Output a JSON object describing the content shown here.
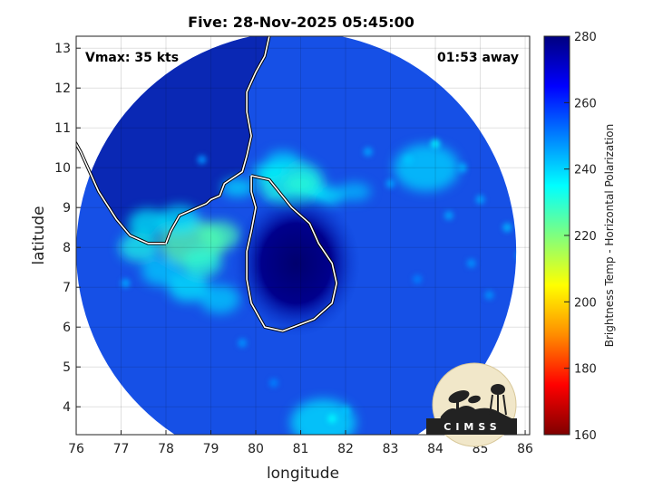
{
  "title": "Five: 28-Nov-2025 05:45:00",
  "inset": {
    "vmax": "Vmax: 35 kts",
    "time_away": "01:53 away"
  },
  "axes": {
    "xlabel": "longitude",
    "ylabel": "latitude",
    "xlim": [
      76,
      86.1
    ],
    "ylim": [
      3.3,
      13.3
    ],
    "xticks": [
      76,
      77,
      78,
      79,
      80,
      81,
      82,
      83,
      84,
      85,
      86
    ],
    "yticks": [
      4,
      5,
      6,
      7,
      8,
      9,
      10,
      11,
      12,
      13
    ],
    "grid": true
  },
  "colorbar": {
    "label": "Brightness Temp - Horizontal Polarization",
    "range": [
      160,
      280
    ],
    "ticks": [
      160,
      180,
      200,
      220,
      240,
      260,
      280
    ],
    "colors": [
      "#7f0000",
      "#ff0000",
      "#ff8c00",
      "#ffff00",
      "#7fff7f",
      "#00ffff",
      "#0080ff",
      "#0000ff",
      "#00007f"
    ]
  },
  "logo": {
    "text": "CIMSS"
  },
  "chart_data": {
    "type": "heatmap",
    "title": "Five: 28-Nov-2025 05:45:00",
    "xlabel": "longitude",
    "ylabel": "latitude",
    "xlim": [
      76,
      86.1
    ],
    "ylim": [
      3.3,
      13.3
    ],
    "variable": "Brightness Temp - Horizontal Polarization",
    "value_range": [
      160,
      280
    ],
    "swath_center": [
      80.9,
      7.9
    ],
    "swath_radius_deg": 4.9,
    "background_value": 258,
    "features": [
      {
        "name": "western rainband",
        "lon": 78.6,
        "lat": 8.1,
        "value": 225
      },
      {
        "name": "northern rainband",
        "lon": 80.8,
        "lat": 9.6,
        "value": 232
      },
      {
        "name": "eastern convection",
        "lon": 83.8,
        "lat": 10.0,
        "value": 240
      },
      {
        "name": "southern edge",
        "lon": 81.5,
        "lat": 3.6,
        "value": 238
      }
    ],
    "coastlines": {
      "india": [
        [
          78.0,
          8.1
        ],
        [
          77.6,
          8.1
        ],
        [
          77.2,
          8.3
        ],
        [
          76.9,
          8.7
        ],
        [
          76.5,
          9.4
        ],
        [
          76.3,
          9.9
        ],
        [
          76.1,
          10.4
        ],
        [
          75.9,
          10.8
        ],
        [
          75.8,
          11.1
        ]
      ],
      "india_east": [
        [
          78.0,
          8.1
        ],
        [
          78.1,
          8.4
        ],
        [
          78.3,
          8.8
        ],
        [
          78.9,
          9.1
        ],
        [
          79.0,
          9.2
        ],
        [
          79.2,
          9.3
        ],
        [
          79.3,
          9.6
        ],
        [
          79.7,
          9.9
        ],
        [
          79.8,
          10.3
        ],
        [
          79.9,
          10.8
        ],
        [
          79.8,
          11.4
        ],
        [
          79.8,
          11.9
        ],
        [
          80.0,
          12.4
        ],
        [
          80.2,
          12.8
        ],
        [
          80.3,
          13.3
        ]
      ],
      "sri_lanka": [
        [
          79.9,
          9.8
        ],
        [
          80.3,
          9.7
        ],
        [
          80.8,
          9.0
        ],
        [
          81.2,
          8.6
        ],
        [
          81.4,
          8.1
        ],
        [
          81.7,
          7.6
        ],
        [
          81.8,
          7.1
        ],
        [
          81.7,
          6.6
        ],
        [
          81.3,
          6.2
        ],
        [
          80.6,
          5.9
        ],
        [
          80.2,
          6.0
        ],
        [
          79.9,
          6.6
        ],
        [
          79.8,
          7.2
        ],
        [
          79.8,
          7.9
        ],
        [
          79.9,
          8.4
        ],
        [
          80.0,
          9.0
        ],
        [
          79.9,
          9.4
        ],
        [
          79.9,
          9.8
        ]
      ]
    }
  }
}
